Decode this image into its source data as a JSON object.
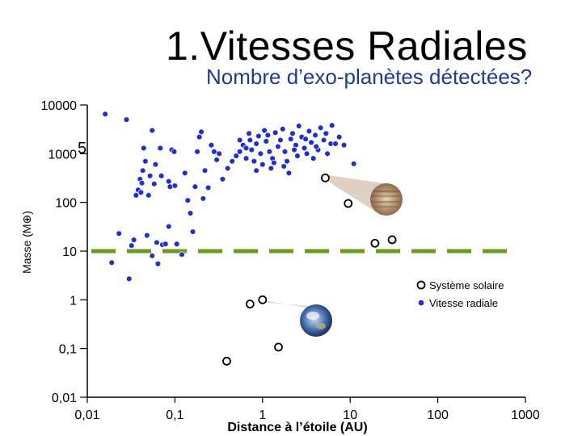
{
  "header": {
    "title": "1.Vitesses Radiales",
    "subtitle": "Nombre d’exo-planètes détectées?"
  },
  "colors": {
    "rv_points": "#1f2fd0",
    "solar_points": "#000000",
    "threshold_line": "#6a9a1f",
    "jupiter_cone": "#d8c9b8",
    "earth_cone": "#c9ccec"
  },
  "chart_data": {
    "type": "scatter",
    "xscale": "log",
    "yscale": "log",
    "xlim": [
      0.01,
      1000
    ],
    "ylim": [
      0.01,
      10000
    ],
    "xlabel": "Distance à l’étoile (AU)",
    "ylabel": "Masse (M⊕)",
    "x_ticks": [
      {
        "value": 0.01,
        "label": "0,01"
      },
      {
        "value": 0.1,
        "label": "0,1"
      },
      {
        "value": 1,
        "label": "1"
      },
      {
        "value": 10,
        "label": "10"
      },
      {
        "value": 100,
        "label": "100"
      },
      {
        "value": 1000,
        "label": "1000"
      }
    ],
    "y_ticks": [
      {
        "value": 10000,
        "label": "10000"
      },
      {
        "value": 1000,
        "label": "1000"
      },
      {
        "value": 100,
        "label": "100"
      },
      {
        "value": 10,
        "label": "10"
      },
      {
        "value": 1,
        "label": "1"
      },
      {
        "value": 0.1,
        "label": "0,1"
      },
      {
        "value": 0.01,
        "label": "0,01"
      }
    ],
    "threshold_line": {
      "y": 10,
      "style": "dashed"
    },
    "legend": {
      "placement": "bottom-right",
      "entries": [
        {
          "label": "Système solaire",
          "marker": "open-circle"
        },
        {
          "label": "Vitesse radiale",
          "marker": "filled-dot"
        }
      ]
    },
    "stray_label": "5",
    "series": [
      {
        "name": "Système solaire",
        "marker": "open-circle",
        "points": [
          {
            "x": 0.39,
            "y": 0.055
          },
          {
            "x": 0.72,
            "y": 0.82
          },
          {
            "x": 1.0,
            "y": 1.0
          },
          {
            "x": 1.52,
            "y": 0.107
          },
          {
            "x": 5.2,
            "y": 318
          },
          {
            "x": 9.5,
            "y": 95
          },
          {
            "x": 19.2,
            "y": 14.5
          },
          {
            "x": 30.1,
            "y": 17.1
          }
        ]
      },
      {
        "name": "Vitesse radiale",
        "marker": "filled-dot",
        "points": [
          {
            "x": 0.016,
            "y": 6500
          },
          {
            "x": 0.028,
            "y": 5000
          },
          {
            "x": 0.019,
            "y": 5.8
          },
          {
            "x": 0.023,
            "y": 23
          },
          {
            "x": 0.03,
            "y": 2.7
          },
          {
            "x": 0.032,
            "y": 13
          },
          {
            "x": 0.034,
            "y": 17
          },
          {
            "x": 0.036,
            "y": 140
          },
          {
            "x": 0.038,
            "y": 180
          },
          {
            "x": 0.04,
            "y": 300
          },
          {
            "x": 0.042,
            "y": 250
          },
          {
            "x": 0.041,
            "y": 160
          },
          {
            "x": 0.043,
            "y": 450
          },
          {
            "x": 0.044,
            "y": 1300
          },
          {
            "x": 0.046,
            "y": 700
          },
          {
            "x": 0.048,
            "y": 21
          },
          {
            "x": 0.05,
            "y": 140
          },
          {
            "x": 0.052,
            "y": 350
          },
          {
            "x": 0.055,
            "y": 3000
          },
          {
            "x": 0.055,
            "y": 8
          },
          {
            "x": 0.058,
            "y": 240
          },
          {
            "x": 0.06,
            "y": 600
          },
          {
            "x": 0.062,
            "y": 15
          },
          {
            "x": 0.064,
            "y": 5.5
          },
          {
            "x": 0.07,
            "y": 350
          },
          {
            "x": 0.068,
            "y": 1300
          },
          {
            "x": 0.072,
            "y": 13.5
          },
          {
            "x": 0.078,
            "y": 14
          },
          {
            "x": 0.085,
            "y": 32
          },
          {
            "x": 0.085,
            "y": 270
          },
          {
            "x": 0.088,
            "y": 210
          },
          {
            "x": 0.092,
            "y": 1200
          },
          {
            "x": 0.1,
            "y": 220
          },
          {
            "x": 0.098,
            "y": 1100
          },
          {
            "x": 0.105,
            "y": 14
          },
          {
            "x": 0.12,
            "y": 8.5
          },
          {
            "x": 0.13,
            "y": 400
          },
          {
            "x": 0.14,
            "y": 110
          },
          {
            "x": 0.15,
            "y": 60
          },
          {
            "x": 0.16,
            "y": 25
          },
          {
            "x": 0.17,
            "y": 210
          },
          {
            "x": 0.18,
            "y": 1100
          },
          {
            "x": 0.19,
            "y": 2200
          },
          {
            "x": 0.2,
            "y": 2800
          },
          {
            "x": 0.21,
            "y": 120
          },
          {
            "x": 0.22,
            "y": 450
          },
          {
            "x": 0.24,
            "y": 200
          },
          {
            "x": 0.26,
            "y": 1500
          },
          {
            "x": 0.28,
            "y": 1100
          },
          {
            "x": 0.3,
            "y": 750
          },
          {
            "x": 0.32,
            "y": 1000
          },
          {
            "x": 0.35,
            "y": 300
          },
          {
            "x": 0.4,
            "y": 500
          },
          {
            "x": 0.45,
            "y": 700
          },
          {
            "x": 0.5,
            "y": 900
          },
          {
            "x": 0.55,
            "y": 1100
          },
          {
            "x": 0.6,
            "y": 1500
          },
          {
            "x": 0.65,
            "y": 800
          },
          {
            "x": 0.7,
            "y": 2600
          },
          {
            "x": 0.72,
            "y": 1900
          },
          {
            "x": 0.75,
            "y": 1200
          },
          {
            "x": 0.8,
            "y": 700
          },
          {
            "x": 0.85,
            "y": 450
          },
          {
            "x": 0.9,
            "y": 2300
          },
          {
            "x": 0.95,
            "y": 1000
          },
          {
            "x": 1.0,
            "y": 600
          },
          {
            "x": 1.05,
            "y": 3000
          },
          {
            "x": 1.1,
            "y": 1800
          },
          {
            "x": 1.15,
            "y": 2400
          },
          {
            "x": 1.2,
            "y": 1100
          },
          {
            "x": 1.25,
            "y": 500
          },
          {
            "x": 1.3,
            "y": 800
          },
          {
            "x": 1.4,
            "y": 2700
          },
          {
            "x": 1.5,
            "y": 1400
          },
          {
            "x": 1.6,
            "y": 1900
          },
          {
            "x": 1.7,
            "y": 3200
          },
          {
            "x": 1.8,
            "y": 1100
          },
          {
            "x": 1.9,
            "y": 700
          },
          {
            "x": 2.0,
            "y": 400
          },
          {
            "x": 2.1,
            "y": 2000
          },
          {
            "x": 2.2,
            "y": 2600
          },
          {
            "x": 2.4,
            "y": 1500
          },
          {
            "x": 2.5,
            "y": 900
          },
          {
            "x": 2.6,
            "y": 3700
          },
          {
            "x": 2.8,
            "y": 2200
          },
          {
            "x": 3.0,
            "y": 1300
          },
          {
            "x": 3.2,
            "y": 1000
          },
          {
            "x": 3.4,
            "y": 2900
          },
          {
            "x": 3.6,
            "y": 1700
          },
          {
            "x": 3.8,
            "y": 800
          },
          {
            "x": 4.0,
            "y": 2400
          },
          {
            "x": 4.3,
            "y": 1200
          },
          {
            "x": 4.6,
            "y": 3400
          },
          {
            "x": 5.0,
            "y": 1900
          },
          {
            "x": 5.5,
            "y": 1000
          },
          {
            "x": 6.0,
            "y": 1600
          },
          {
            "x": 0.55,
            "y": 1900
          },
          {
            "x": 0.65,
            "y": 1300
          },
          {
            "x": 0.85,
            "y": 1600
          },
          {
            "x": 1.35,
            "y": 650
          },
          {
            "x": 1.75,
            "y": 550
          },
          {
            "x": 2.3,
            "y": 1200
          },
          {
            "x": 3.1,
            "y": 2000
          },
          {
            "x": 4.1,
            "y": 1400
          },
          {
            "x": 5.3,
            "y": 2600
          },
          {
            "x": 6.2,
            "y": 3800
          },
          {
            "x": 6.8,
            "y": 1600
          },
          {
            "x": 7.5,
            "y": 2200
          },
          {
            "x": 8.5,
            "y": 1500
          },
          {
            "x": 11,
            "y": 620
          }
        ]
      }
    ]
  }
}
